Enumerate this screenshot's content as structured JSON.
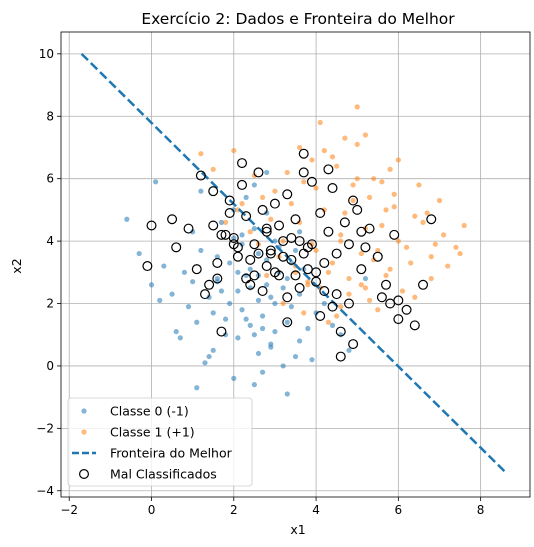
{
  "chart_data": {
    "type": "scatter",
    "title": "Exercício 2: Dados e Fronteira do Melhor",
    "xlabel": "x1",
    "ylabel": "x2",
    "xlim": [
      -2.2,
      9.2
    ],
    "ylim": [
      -4.2,
      10.7
    ],
    "xticks": [
      -2,
      0,
      2,
      4,
      6,
      8
    ],
    "yticks": [
      -4,
      -2,
      0,
      2,
      4,
      6,
      8,
      10
    ],
    "xtick_labels": [
      "−2",
      "0",
      "2",
      "4",
      "6",
      "8"
    ],
    "ytick_labels": [
      "−4",
      "−2",
      "0",
      "2",
      "4",
      "6",
      "8",
      "10"
    ],
    "grid": true,
    "legend_position": "lower-left",
    "series": [
      {
        "name": "Classe 0 (-1)",
        "kind": "points",
        "color": "#1f77b4",
        "x": [
          2.4,
          2.1,
          3.0,
          2.6,
          1.6,
          3.3,
          2.8,
          2.2,
          1.9,
          3.6,
          2.5,
          2.0,
          3.1,
          2.7,
          1.4,
          2.3,
          3.4,
          2.9,
          1.8,
          2.6,
          1.2,
          3.8,
          2.1,
          2.5,
          3.2,
          1.0,
          2.8,
          3.5,
          1.7,
          2.4,
          0.8,
          2.0,
          3.0,
          2.2,
          1.5,
          3.3,
          2.7,
          0.5,
          1.9,
          2.6,
          3.1,
          1.1,
          2.3,
          4.0,
          2.9,
          1.6,
          0.3,
          2.5,
          3.6,
          1.3,
          2.1,
          2.8,
          1.8,
          0.0,
          3.4,
          2.4,
          1.0,
          2.7,
          3.2,
          -0.3,
          1.5,
          2.0,
          4.2,
          2.6,
          0.6,
          3.0,
          1.7,
          -0.6,
          2.3,
          3.7,
          1.2,
          2.9,
          0.9,
          2.5,
          4.4,
          3.5,
          1.4,
          0.2,
          2.2,
          3.9,
          0.1,
          5.2,
          4.6,
          3.3,
          2.8,
          1.6,
          1.1,
          0.7,
          4.8,
          3.6
        ],
        "y": [
          3.1,
          2.4,
          2.0,
          3.6,
          2.8,
          1.4,
          2.6,
          1.8,
          3.3,
          2.3,
          1.0,
          4.1,
          3.0,
          1.6,
          2.2,
          2.9,
          1.9,
          0.7,
          1.5,
          2.1,
          3.7,
          1.2,
          0.9,
          4.4,
          2.5,
          2.7,
          3.4,
          0.3,
          4.6,
          1.3,
          3.0,
          5.0,
          1.1,
          3.9,
          0.5,
          2.8,
          -0.2,
          2.3,
          2.0,
          0.4,
          3.8,
          1.4,
          5.4,
          1.7,
          2.2,
          3.5,
          3.2,
          -0.6,
          0.8,
          0.1,
          3.0,
          4.9,
          1.0,
          2.6,
          3.3,
          2.5,
          4.3,
          1.2,
          0.0,
          3.6,
          1.7,
          -0.4,
          2.0,
          2.9,
          1.1,
          4.0,
          2.4,
          4.7,
          1.5,
          3.1,
          5.6,
          0.6,
          1.9,
          5.8,
          1.3,
          3.7,
          0.3,
          2.1,
          4.2,
          0.2,
          5.9,
          2.8,
          1.0,
          -0.9,
          6.2,
          2.7,
          -0.7,
          0.9,
          0.5,
          4.3
        ]
      },
      {
        "name": "Classe 1 (+1)",
        "kind": "points",
        "color": "#ff7f0e",
        "x": [
          4.6,
          5.1,
          4.2,
          5.6,
          3.9,
          4.8,
          6.0,
          5.3,
          4.4,
          3.6,
          5.8,
          4.9,
          6.4,
          4.1,
          5.5,
          3.4,
          4.7,
          6.8,
          5.0,
          4.3,
          5.9,
          3.8,
          5.2,
          6.2,
          4.5,
          3.2,
          5.7,
          7.1,
          4.0,
          5.4,
          6.6,
          3.5,
          4.8,
          5.9,
          2.9,
          4.4,
          7.4,
          5.1,
          3.7,
          6.3,
          4.6,
          2.7,
          5.6,
          3.1,
          6.9,
          4.2,
          5.3,
          2.4,
          7.6,
          4.9,
          3.3,
          6.1,
          2.1,
          5.0,
          3.8,
          6.7,
          1.8,
          4.5,
          5.8,
          2.6,
          7.2,
          4.1,
          3.0,
          6.5,
          1.5,
          5.5,
          3.9,
          7.5,
          2.2,
          4.7,
          5.2,
          3.5,
          6.0,
          2.8,
          4.3,
          5.7,
          1.2,
          3.6,
          6.4,
          5.0,
          4.0,
          2.5,
          7.0,
          3.2,
          5.4,
          3.7,
          4.6,
          6.8,
          5.2,
          2.0
        ],
        "y": [
          4.2,
          3.6,
          5.0,
          4.5,
          3.9,
          2.8,
          4.0,
          5.4,
          3.3,
          4.6,
          3.1,
          5.8,
          4.8,
          2.5,
          3.7,
          5.2,
          4.9,
          3.5,
          6.0,
          3.0,
          5.5,
          2.6,
          4.4,
          3.8,
          6.4,
          4.0,
          2.9,
          4.2,
          5.7,
          3.4,
          4.6,
          3.0,
          2.3,
          5.1,
          4.7,
          6.7,
          3.8,
          2.6,
          5.9,
          3.3,
          1.9,
          5.4,
          5.9,
          3.5,
          3.9,
          6.9,
          2.1,
          4.3,
          4.5,
          5.3,
          6.2,
          2.4,
          5.0,
          7.1,
          2.7,
          4.9,
          4.6,
          1.6,
          6.3,
          3.9,
          3.2,
          7.8,
          5.6,
          5.8,
          6.3,
          1.8,
          6.6,
          3.6,
          5.2,
          7.3,
          2.5,
          3.2,
          6.6,
          2.9,
          1.4,
          5.0,
          6.8,
          7.0,
          2.2,
          8.3,
          3.7,
          6.1,
          5.3,
          2.0,
          6.0,
          1.7,
          4.0,
          2.8,
          7.4,
          6.9
        ]
      },
      {
        "name": "Fronteira do Melhor",
        "kind": "line",
        "color": "#1f77b4",
        "dashed": true,
        "x": [
          -1.7,
          8.6
        ],
        "y": [
          10.0,
          -3.4
        ]
      },
      {
        "name": "Mal Classificados",
        "kind": "markers",
        "color": "#000000",
        "x": [
          -0.1,
          0.0,
          0.5,
          0.6,
          0.9,
          1.1,
          1.2,
          1.3,
          1.4,
          1.5,
          1.6,
          1.7,
          1.8,
          1.9,
          2.0,
          2.1,
          2.2,
          2.3,
          2.4,
          2.5,
          2.6,
          2.7,
          2.8,
          2.9,
          3.0,
          3.1,
          3.2,
          3.3,
          3.4,
          3.5,
          3.6,
          3.7,
          3.8,
          3.9,
          4.0,
          4.1,
          4.2,
          4.3,
          4.4,
          4.5,
          4.6,
          4.7,
          4.8,
          4.9,
          5.0,
          5.1,
          5.2,
          5.3,
          5.5,
          5.7,
          5.9,
          6.0,
          6.2,
          6.4,
          6.6,
          6.8,
          3.7,
          4.3,
          1.6,
          2.8,
          3.3,
          2.2,
          3.9,
          4.6,
          1.9,
          3.0,
          2.5,
          4.1,
          3.6,
          2.9,
          3.4,
          2.7,
          4.8,
          5.1,
          4.0,
          3.2,
          2.4,
          3.8,
          4.5,
          2.1,
          6.0,
          5.8,
          5.6,
          3.5,
          4.2,
          2.6,
          3.1,
          1.5,
          2.0,
          4.4,
          3.7,
          2.3,
          1.7,
          4.9,
          3.3,
          2.8
        ],
        "y": [
          3.2,
          4.5,
          4.7,
          3.8,
          4.4,
          3.1,
          6.1,
          2.3,
          2.6,
          5.6,
          3.3,
          1.1,
          4.2,
          5.3,
          4.1,
          3.5,
          5.8,
          4.8,
          2.6,
          3.9,
          6.2,
          5.0,
          4.4,
          3.6,
          5.2,
          2.9,
          4.0,
          5.5,
          3.4,
          4.7,
          2.5,
          6.2,
          3.8,
          5.9,
          3.0,
          4.9,
          2.4,
          4.3,
          5.7,
          3.6,
          1.1,
          4.6,
          3.9,
          5.3,
          5.0,
          4.3,
          3.8,
          4.4,
          3.5,
          2.6,
          4.2,
          2.1,
          1.8,
          1.3,
          2.6,
          4.7,
          6.8,
          6.3,
          2.8,
          3.2,
          2.2,
          6.5,
          3.9,
          0.3,
          4.9,
          3.0,
          2.9,
          1.6,
          4.0,
          3.7,
          4.1,
          2.4,
          2.0,
          3.1,
          2.7,
          3.5,
          3.4,
          3.1,
          2.3,
          3.8,
          1.5,
          2.0,
          2.2,
          2.9,
          3.3,
          3.6,
          4.5,
          4.5,
          3.9,
          1.9,
          3.6,
          2.8,
          4.2,
          0.7,
          1.4,
          4.3
        ]
      }
    ]
  }
}
